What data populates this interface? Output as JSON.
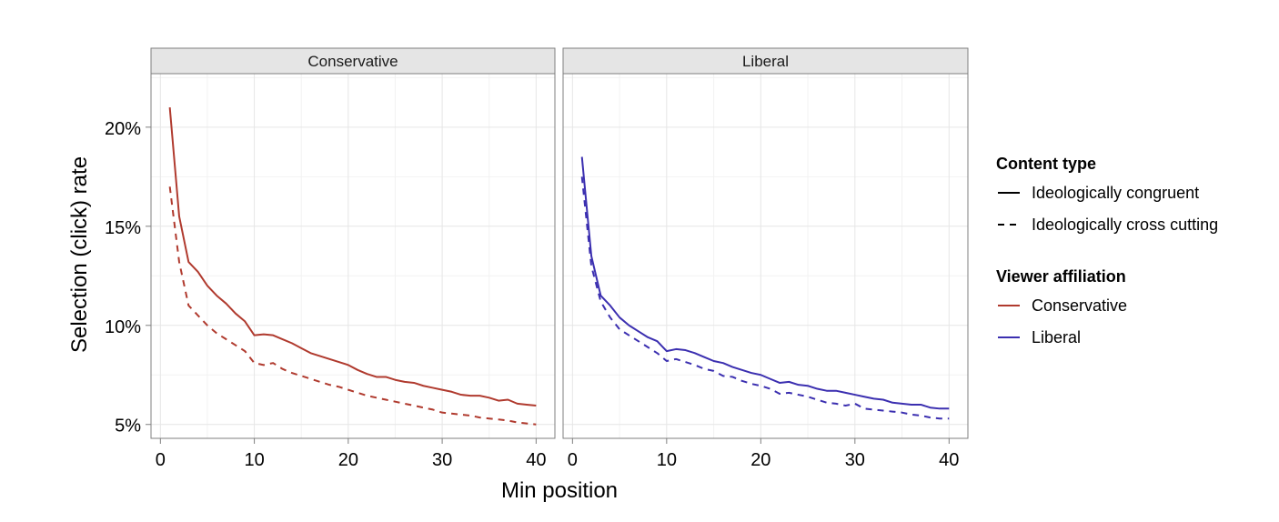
{
  "chart_data": {
    "type": "line",
    "xlabel": "Min position",
    "ylabel": "Selection (click) rate",
    "xlim": [
      -1,
      42
    ],
    "ylim": [
      4.3,
      22.7
    ],
    "x_ticks": [
      0,
      10,
      20,
      30,
      40
    ],
    "y_ticks": [
      5,
      10,
      15,
      20
    ],
    "y_tick_labels": [
      "5%",
      "10%",
      "15%",
      "20%"
    ],
    "grid": true,
    "legend_position": "right",
    "facets": [
      {
        "label": "Conservative",
        "color": "#b03a2e",
        "series": [
          {
            "name": "Ideologically congruent",
            "dash": "solid",
            "x": [
              1,
              2,
              3,
              4,
              5,
              6,
              7,
              8,
              9,
              10,
              11,
              12,
              13,
              14,
              15,
              16,
              17,
              18,
              19,
              20,
              21,
              22,
              23,
              24,
              25,
              26,
              27,
              28,
              29,
              30,
              31,
              32,
              33,
              34,
              35,
              36,
              37,
              38,
              39,
              40
            ],
            "y": [
              21.0,
              15.5,
              13.2,
              12.7,
              12.0,
              11.5,
              11.1,
              10.6,
              10.2,
              9.5,
              9.55,
              9.5,
              9.3,
              9.1,
              8.85,
              8.6,
              8.45,
              8.3,
              8.15,
              8.0,
              7.75,
              7.55,
              7.4,
              7.4,
              7.25,
              7.15,
              7.1,
              6.95,
              6.85,
              6.75,
              6.65,
              6.5,
              6.45,
              6.45,
              6.35,
              6.2,
              6.25,
              6.05,
              6.0,
              5.95
            ]
          },
          {
            "name": "Ideologically cross cutting",
            "dash": "dashed",
            "x": [
              1,
              2,
              3,
              4,
              5,
              6,
              7,
              8,
              9,
              10,
              11,
              12,
              13,
              14,
              15,
              16,
              17,
              18,
              19,
              20,
              21,
              22,
              23,
              24,
              25,
              26,
              27,
              28,
              29,
              30,
              31,
              32,
              33,
              34,
              35,
              36,
              37,
              38,
              39,
              40
            ],
            "y": [
              17.0,
              13.2,
              11.0,
              10.5,
              10.0,
              9.6,
              9.3,
              9.0,
              8.7,
              8.1,
              8.0,
              8.1,
              7.8,
              7.6,
              7.45,
              7.3,
              7.15,
              7.0,
              6.9,
              6.75,
              6.6,
              6.45,
              6.35,
              6.25,
              6.15,
              6.05,
              5.95,
              5.85,
              5.75,
              5.6,
              5.55,
              5.5,
              5.45,
              5.35,
              5.3,
              5.25,
              5.2,
              5.1,
              5.05,
              5.0
            ]
          }
        ]
      },
      {
        "label": "Liberal",
        "color": "#3b2fb0",
        "series": [
          {
            "name": "Ideologically congruent",
            "dash": "solid",
            "x": [
              1,
              2,
              3,
              4,
              5,
              6,
              7,
              8,
              9,
              10,
              11,
              12,
              13,
              14,
              15,
              16,
              17,
              18,
              19,
              20,
              21,
              22,
              23,
              24,
              25,
              26,
              27,
              28,
              29,
              30,
              31,
              32,
              33,
              34,
              35,
              36,
              37,
              38,
              39,
              40
            ],
            "y": [
              18.5,
              13.5,
              11.5,
              11.0,
              10.4,
              10.0,
              9.7,
              9.4,
              9.2,
              8.7,
              8.8,
              8.75,
              8.6,
              8.4,
              8.2,
              8.1,
              7.9,
              7.75,
              7.6,
              7.5,
              7.3,
              7.1,
              7.15,
              7.0,
              6.95,
              6.8,
              6.7,
              6.7,
              6.6,
              6.5,
              6.4,
              6.3,
              6.25,
              6.1,
              6.05,
              6.0,
              6.0,
              5.85,
              5.8,
              5.8
            ]
          },
          {
            "name": "Ideologically cross cutting",
            "dash": "dashed",
            "x": [
              1,
              2,
              3,
              4,
              5,
              6,
              7,
              8,
              9,
              10,
              11,
              12,
              13,
              14,
              15,
              16,
              17,
              18,
              19,
              20,
              21,
              22,
              23,
              24,
              25,
              26,
              27,
              28,
              29,
              30,
              31,
              32,
              33,
              34,
              35,
              36,
              37,
              38,
              39,
              40
            ],
            "y": [
              17.5,
              13.0,
              11.2,
              10.4,
              9.8,
              9.5,
              9.2,
              8.9,
              8.6,
              8.2,
              8.3,
              8.15,
              8.0,
              7.8,
              7.7,
              7.45,
              7.4,
              7.2,
              7.05,
              6.95,
              6.8,
              6.55,
              6.6,
              6.5,
              6.4,
              6.25,
              6.1,
              6.05,
              5.95,
              6.05,
              5.8,
              5.75,
              5.7,
              5.65,
              5.6,
              5.5,
              5.45,
              5.35,
              5.3,
              5.3
            ]
          }
        ]
      }
    ],
    "legends": [
      {
        "title": "Content type",
        "items": [
          {
            "label": "Ideologically congruent",
            "dash": "solid",
            "color": "#000000"
          },
          {
            "label": "Ideologically cross cutting",
            "dash": "dashed",
            "color": "#000000"
          }
        ]
      },
      {
        "title": "Viewer affiliation",
        "items": [
          {
            "label": "Conservative",
            "dash": "solid",
            "color": "#b03a2e"
          },
          {
            "label": "Liberal",
            "dash": "solid",
            "color": "#3b2fb0"
          }
        ]
      }
    ]
  }
}
